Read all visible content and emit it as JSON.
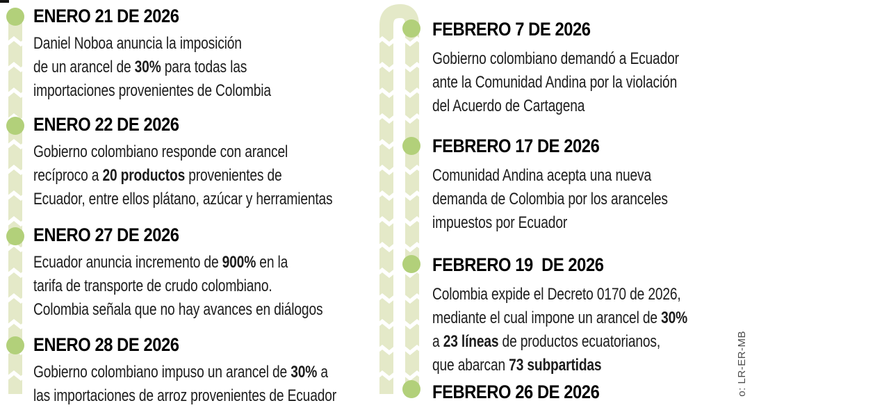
{
  "colors": {
    "dot_green": "#b2d07a",
    "line_green": "#e4e9c8",
    "date_text": "#000000",
    "body_text": "#1d1d1d",
    "credit_text": "#4c4c4c"
  },
  "credit": "o: LR-ER-MB",
  "timeline": {
    "left": [
      {
        "date": "ENERO 21 DE 2026",
        "body": [
          {
            "t": "Daniel Noboa anuncia la imposición\nde un arancel de "
          },
          {
            "t": "30%",
            "b": true
          },
          {
            "t": " para todas las\nimportaciones provenientes de Colombia"
          }
        ]
      },
      {
        "date": "ENERO 22 DE 2026",
        "body": [
          {
            "t": "Gobierno colombiano responde con arancel\nrecíproco a "
          },
          {
            "t": "20 productos",
            "b": true
          },
          {
            "t": " provenientes de\nEcuador, entre ellos plátano, azúcar y herramientas"
          }
        ]
      },
      {
        "date": "ENERO 27 DE 2026",
        "body": [
          {
            "t": "Ecuador anuncia incremento de "
          },
          {
            "t": "900%",
            "b": true
          },
          {
            "t": " en la\ntarifa de transporte de crudo colombiano.\nColombia señala que no hay avances en diálogos"
          }
        ]
      },
      {
        "date": "ENERO 28 DE 2026",
        "body": [
          {
            "t": "Gobierno colombiano impuso un arancel de "
          },
          {
            "t": "30%",
            "b": true
          },
          {
            "t": " a\nlas importaciones de arroz provenientes de Ecuador"
          }
        ]
      }
    ],
    "right": [
      {
        "date": "FEBRERO 7 DE 2026",
        "body": [
          {
            "t": "Gobierno colombiano demandó a Ecuador\nante la Comunidad Andina por la violación\ndel Acuerdo de Cartagena"
          }
        ]
      },
      {
        "date": "FEBRERO 17 DE 2026",
        "body": [
          {
            "t": "Comunidad Andina acepta una nueva\ndemanda de Colombia por los aranceles\nimpuestos por Ecuador"
          }
        ]
      },
      {
        "date": "FEBRERO 19  DE 2026",
        "body": [
          {
            "t": "Colombia expide el Decreto 0170 de 2026,\nmediante el cual impone un arancel de "
          },
          {
            "t": "30%",
            "b": true
          },
          {
            "t": "\na "
          },
          {
            "t": "23 líneas",
            "b": true
          },
          {
            "t": " de productos ecuatorianos,\nque abarcan "
          },
          {
            "t": "73 subpartidas",
            "b": true
          }
        ]
      },
      {
        "date": "FEBRERO 26 DE 2026",
        "body": []
      }
    ]
  }
}
